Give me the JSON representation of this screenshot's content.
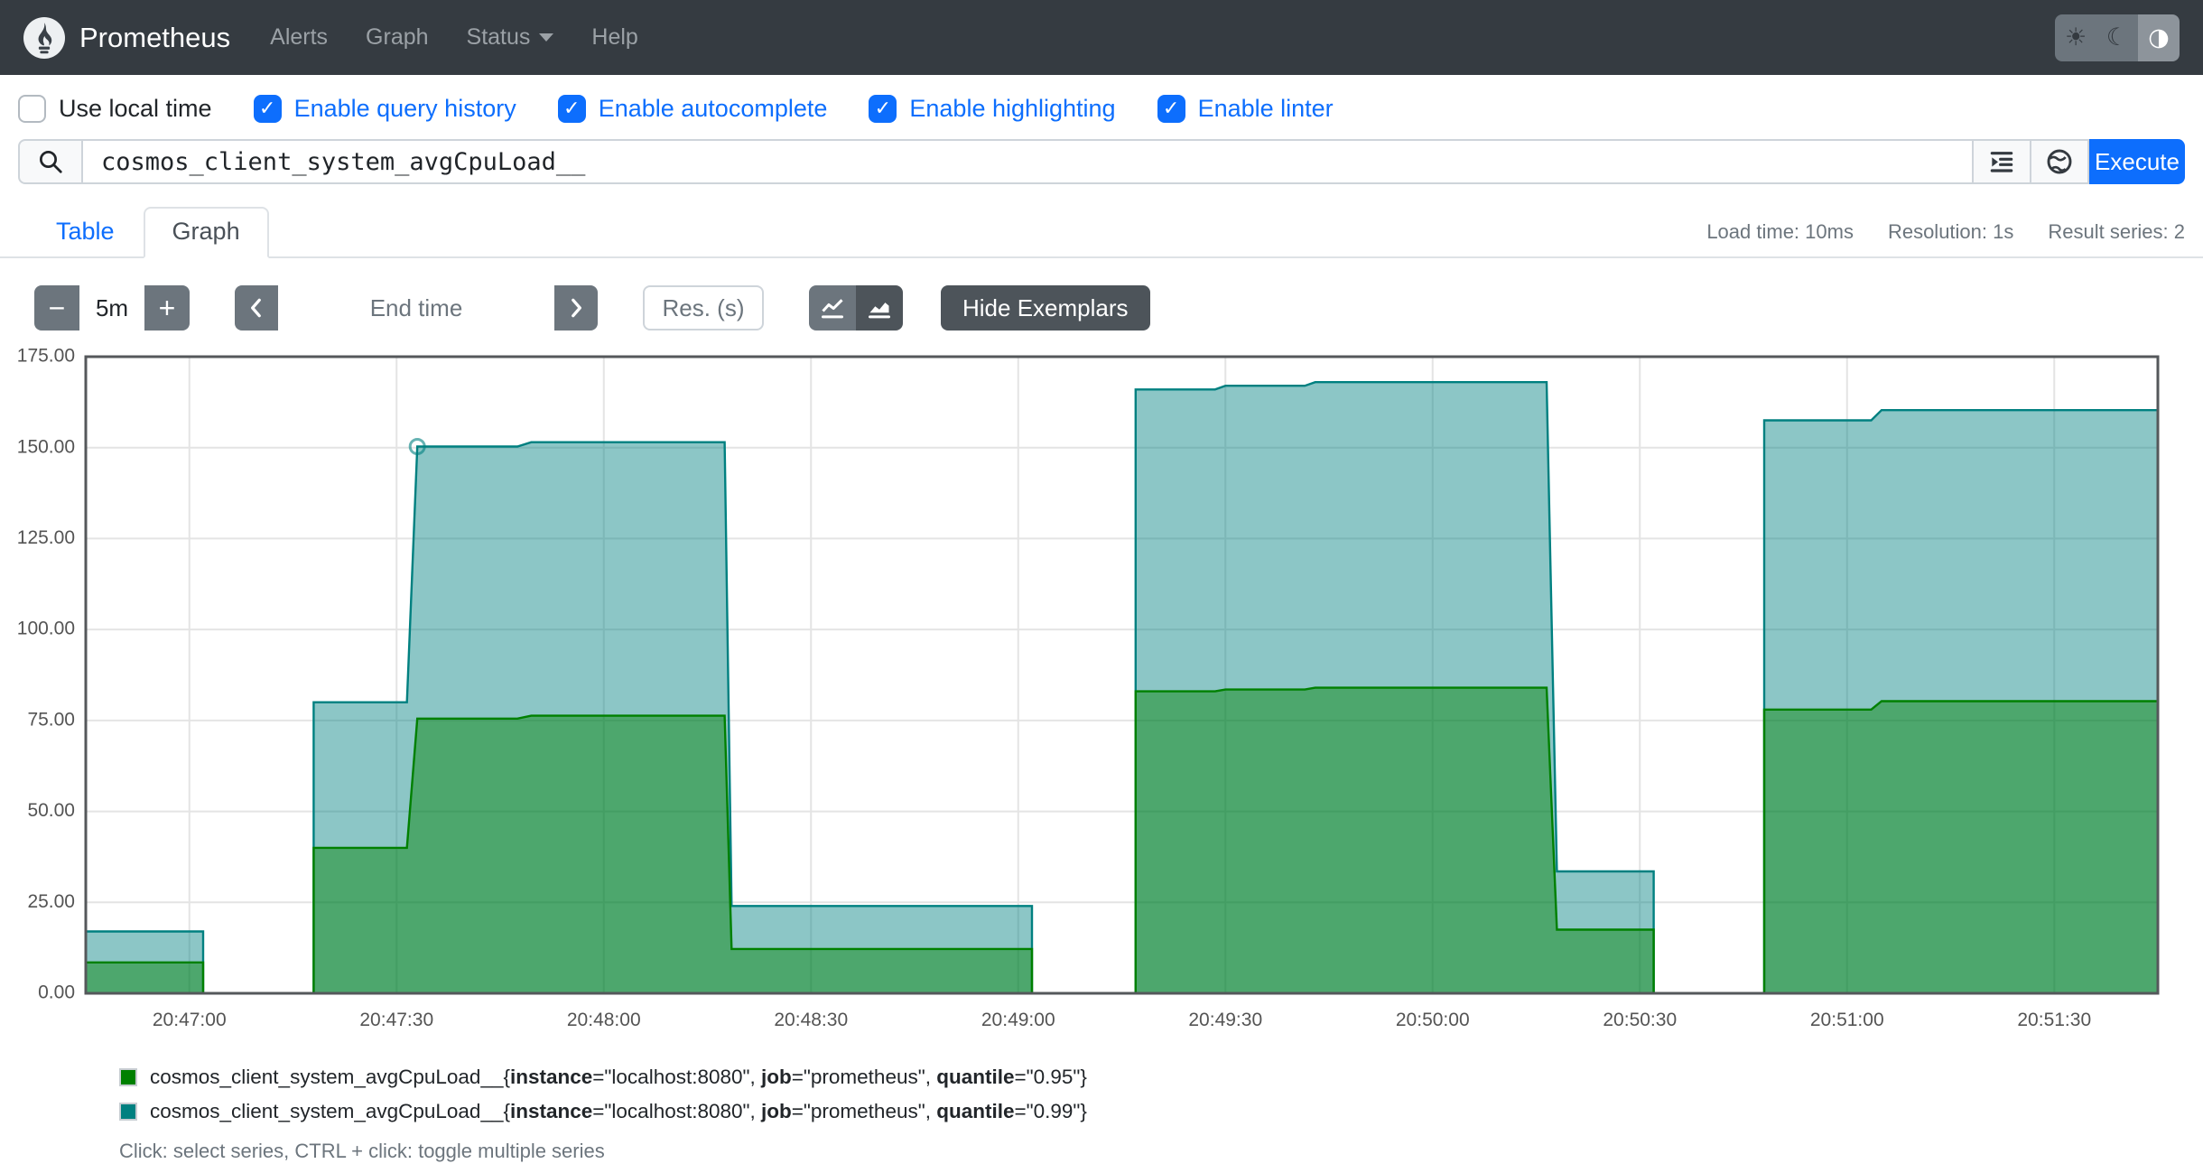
{
  "navbar": {
    "brand": "Prometheus",
    "links": [
      {
        "label": "Alerts",
        "caret": false
      },
      {
        "label": "Graph",
        "caret": false
      },
      {
        "label": "Status",
        "caret": true
      },
      {
        "label": "Help",
        "caret": false
      }
    ],
    "theme_buttons": [
      {
        "name": "light-theme-button",
        "icon": "sun-icon",
        "glyph": "☀",
        "active": false
      },
      {
        "name": "dark-theme-button",
        "icon": "moon-icon",
        "glyph": "☾",
        "active": false
      },
      {
        "name": "auto-theme-button",
        "icon": "circle-half-icon",
        "glyph": "◑",
        "active": true
      }
    ]
  },
  "options": [
    {
      "label": "Use local time",
      "checked": false
    },
    {
      "label": "Enable query history",
      "checked": true
    },
    {
      "label": "Enable autocomplete",
      "checked": true
    },
    {
      "label": "Enable highlighting",
      "checked": true
    },
    {
      "label": "Enable linter",
      "checked": true
    }
  ],
  "query": {
    "value": "cosmos_client_system_avgCpuLoad__",
    "execute_label": "Execute"
  },
  "tabs": [
    {
      "label": "Table",
      "active": false
    },
    {
      "label": "Graph",
      "active": true
    }
  ],
  "stats": [
    "Load time: 10ms",
    "Resolution: 1s",
    "Result series: 2"
  ],
  "controls": {
    "range_value": "5m",
    "minus_label": "−",
    "plus_label": "+",
    "end_time_placeholder": "End time",
    "resolution_placeholder": "Res. (s)",
    "hide_exemplars_label": "Hide Exemplars"
  },
  "chart_data": {
    "type": "area",
    "title": "",
    "x_axis": {
      "start_time": "20:46:45",
      "span_seconds": 300,
      "ticks": [
        {
          "t": 15,
          "label": "20:47:00"
        },
        {
          "t": 45,
          "label": "20:47:30"
        },
        {
          "t": 75,
          "label": "20:48:00"
        },
        {
          "t": 105,
          "label": "20:48:30"
        },
        {
          "t": 135,
          "label": "20:49:00"
        },
        {
          "t": 165,
          "label": "20:49:30"
        },
        {
          "t": 195,
          "label": "20:50:00"
        },
        {
          "t": 225,
          "label": "20:50:30"
        },
        {
          "t": 255,
          "label": "20:51:00"
        },
        {
          "t": 285,
          "label": "20:51:30"
        }
      ]
    },
    "y_axis": {
      "min": 0,
      "max": 175,
      "ticks": [
        {
          "v": 0,
          "label": "0.00"
        },
        {
          "v": 25,
          "label": "25.00"
        },
        {
          "v": 50,
          "label": "50.00"
        },
        {
          "v": 75,
          "label": "75.00"
        },
        {
          "v": 100,
          "label": "100.00"
        },
        {
          "v": 125,
          "label": "125.00"
        },
        {
          "v": 150,
          "label": "150.00"
        },
        {
          "v": 175,
          "label": "175.00"
        }
      ]
    },
    "draw_order": [
      1,
      0
    ],
    "series": [
      {
        "name": "quantile=\"0.95\"",
        "color": "#008000",
        "fill_opacity": 0.45,
        "segments": [
          [
            [
              0,
              8.5
            ],
            [
              17,
              8.5
            ]
          ],
          [
            [
              33,
              40
            ],
            [
              46.5,
              40
            ],
            [
              48,
              75.5
            ],
            [
              62.5,
              75.5
            ],
            [
              64.5,
              76.3
            ],
            [
              92.5,
              76.3
            ],
            [
              93.5,
              12.2
            ],
            [
              137,
              12.2
            ]
          ],
          [
            [
              152,
              83
            ],
            [
              163.5,
              83
            ],
            [
              165,
              83.5
            ],
            [
              176.5,
              83.5
            ],
            [
              178,
              84
            ],
            [
              211.5,
              84
            ],
            [
              213,
              17.5
            ],
            [
              227,
              17.5
            ]
          ],
          [
            [
              243,
              78
            ],
            [
              258.5,
              78
            ],
            [
              260,
              80.3
            ],
            [
              300,
              80.3
            ]
          ]
        ]
      },
      {
        "name": "quantile=\"0.99\"",
        "color": "#008080",
        "fill_opacity": 0.45,
        "segments": [
          [
            [
              0,
              17
            ],
            [
              17,
              17
            ]
          ],
          [
            [
              33,
              80
            ],
            [
              46.5,
              80
            ],
            [
              48,
              150.3
            ],
            [
              62.5,
              150.3
            ],
            [
              64.5,
              151.5
            ],
            [
              92.5,
              151.5
            ],
            [
              93.5,
              24
            ],
            [
              137,
              24
            ]
          ],
          [
            [
              152,
              166
            ],
            [
              163.5,
              166
            ],
            [
              165,
              167
            ],
            [
              176.5,
              167
            ],
            [
              178,
              168
            ],
            [
              211.5,
              168
            ],
            [
              213,
              33.5
            ],
            [
              227,
              33.5
            ]
          ],
          [
            [
              243,
              157.5
            ],
            [
              258.5,
              157.5
            ],
            [
              260,
              160.3
            ],
            [
              300,
              160.3
            ]
          ]
        ]
      }
    ],
    "markers": [
      {
        "series": 1,
        "t": 48,
        "v": 150.3
      }
    ]
  },
  "legend": {
    "series": [
      {
        "color": "#008000",
        "metric": "cosmos_client_system_avgCpuLoad__",
        "labels": [
          [
            "instance",
            "localhost:8080"
          ],
          [
            "job",
            "prometheus"
          ],
          [
            "quantile",
            "0.95"
          ]
        ]
      },
      {
        "color": "#008080",
        "metric": "cosmos_client_system_avgCpuLoad__",
        "labels": [
          [
            "instance",
            "localhost:8080"
          ],
          [
            "job",
            "prometheus"
          ],
          [
            "quantile",
            "0.99"
          ]
        ]
      }
    ],
    "hint": "Click: select series, CTRL + click: toggle multiple series"
  }
}
